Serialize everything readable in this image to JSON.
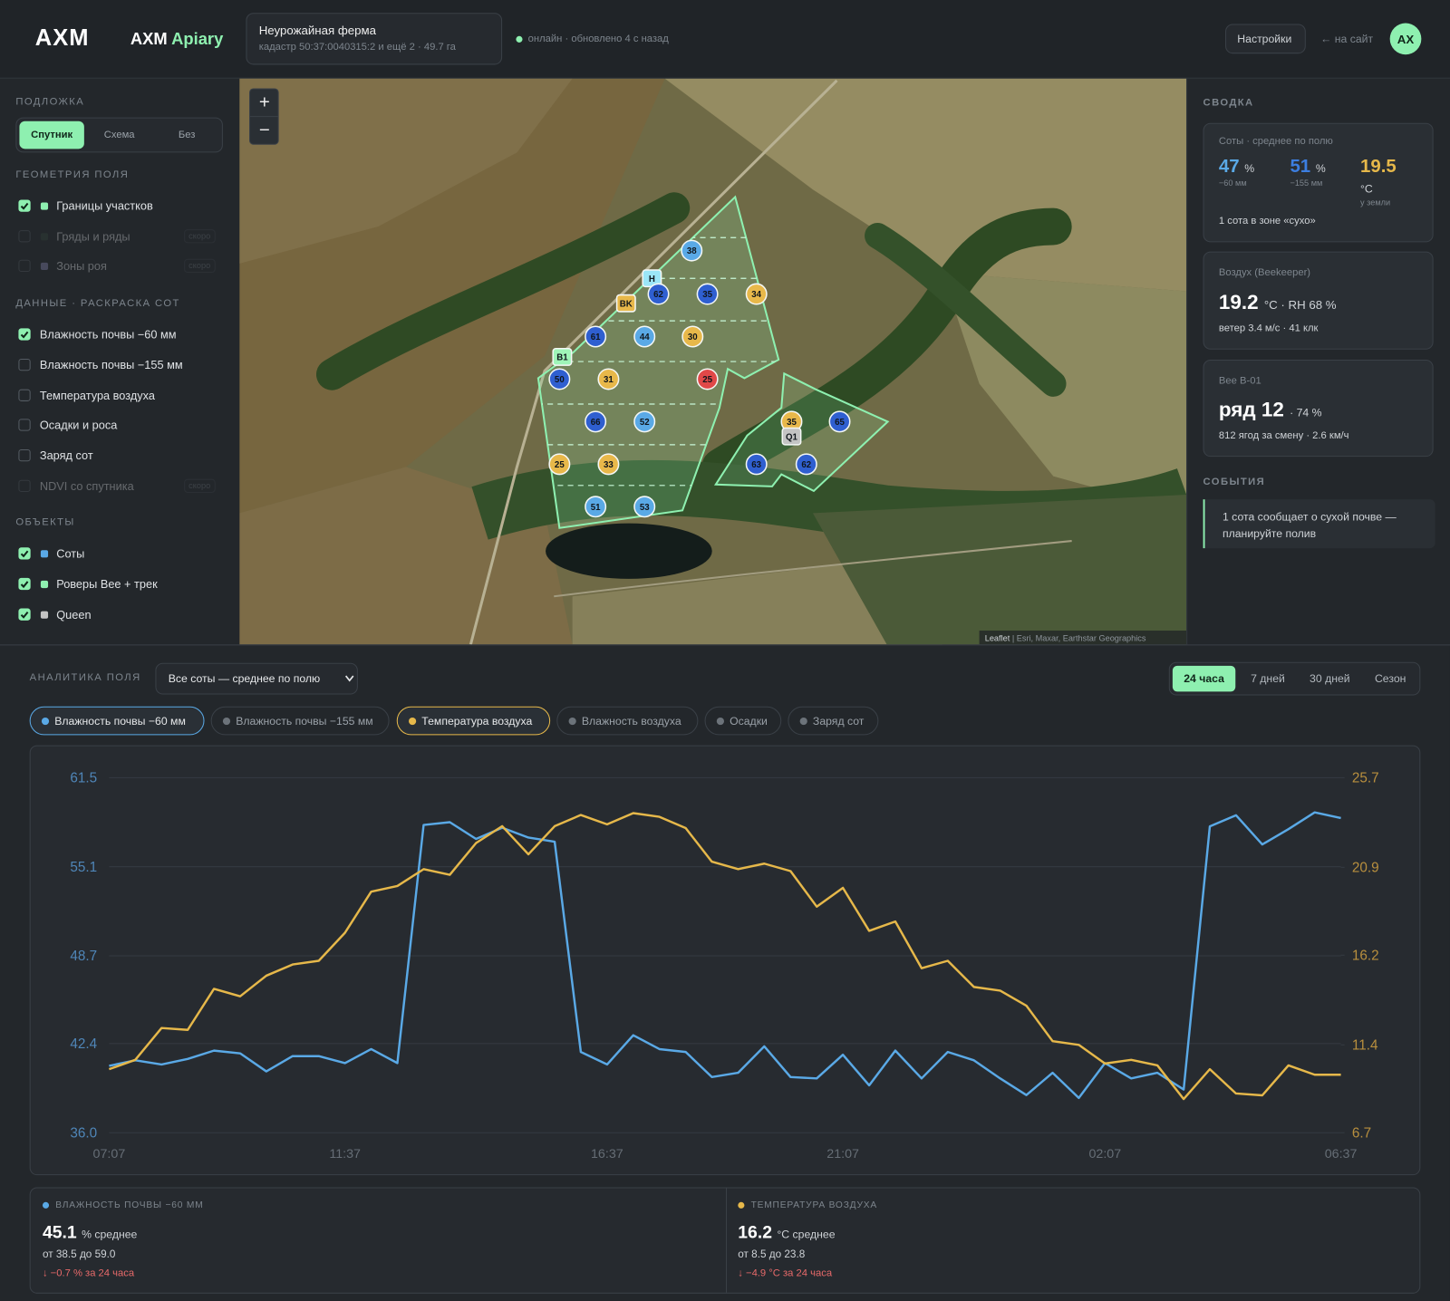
{
  "header": {
    "logo": "AXM",
    "app_name": "AXM",
    "app_accent": "Apiary",
    "farm_name": "Неурожайная ферма",
    "farm_details": "кадастр 50:37:0040315:2 и ещё 2 · 49.7 га",
    "status": "онлайн · обновлено 4 с назад",
    "settings": "Настройки",
    "back": "← на сайт",
    "avatar": "AX"
  },
  "basemap": {
    "title": "ПОДЛОЖКА",
    "options": [
      "Спутник",
      "Схема",
      "Без"
    ],
    "active": 0
  },
  "layers": [
    {
      "title": "ГЕОМЕТРИЯ ПОЛЯ",
      "items": [
        {
          "label": "Границы участков",
          "checked": true,
          "color": "#8ef0b0"
        },
        {
          "label": "Гряды и ряды",
          "checked": false,
          "disabled": true,
          "color": "#33453a",
          "badge": "скоро"
        },
        {
          "label": "Зоны роя",
          "checked": false,
          "disabled": true,
          "color": "#8a8ab8",
          "badge": "скоро"
        }
      ]
    },
    {
      "title": "ДАННЫЕ · РАСКРАСКА СОТ",
      "items": [
        {
          "label": "Влажность почвы −60 мм",
          "checked": true
        },
        {
          "label": "Влажность почвы −155 мм",
          "checked": false
        },
        {
          "label": "Температура воздуха",
          "checked": false
        },
        {
          "label": "Осадки и роса",
          "checked": false
        },
        {
          "label": "Заряд сот",
          "checked": false
        },
        {
          "label": "NDVI со спутника",
          "checked": false,
          "disabled": true,
          "badge": "скоро"
        }
      ]
    },
    {
      "title": "ОБЪЕКТЫ",
      "items": [
        {
          "label": "Соты",
          "checked": true,
          "color": "#5aa9e6"
        },
        {
          "label": "Роверы Bee + трек",
          "checked": true,
          "color": "#8ef0b0"
        },
        {
          "label": "Queen",
          "checked": true,
          "color": "#c4c4c4"
        }
      ]
    }
  ],
  "map": {
    "zoom_in": "+",
    "zoom_out": "−",
    "attribution_brand": "Leaflet",
    "attribution": "| Esri, Maxar, Earthstar Geographics",
    "markers": [
      {
        "label": "38",
        "color": "#5aa9e6"
      },
      {
        "label": "H",
        "color": "#9be6f7",
        "shape": "square"
      },
      {
        "label": "62",
        "color": "#2f5fd0"
      },
      {
        "label": "35",
        "color": "#2f5fd0"
      },
      {
        "label": "34",
        "color": "#e8b84a"
      },
      {
        "label": "BK",
        "color": "#e8b84a",
        "shape": "square"
      },
      {
        "label": "61",
        "color": "#2f5fd0"
      },
      {
        "label": "44",
        "color": "#5aa9e6"
      },
      {
        "label": "30",
        "color": "#e8b84a"
      },
      {
        "label": "B1",
        "color": "#9ff5b8",
        "shape": "square"
      },
      {
        "label": "50",
        "color": "#2f5fd0"
      },
      {
        "label": "31",
        "color": "#e8b84a"
      },
      {
        "label": "25",
        "color": "#e04848"
      },
      {
        "label": "66",
        "color": "#2f5fd0"
      },
      {
        "label": "52",
        "color": "#5aa9e6"
      },
      {
        "label": "35",
        "color": "#e8b84a"
      },
      {
        "label": "65",
        "color": "#2f5fd0"
      },
      {
        "label": "Q1",
        "color": "#c4c4c4",
        "shape": "square"
      },
      {
        "label": "25",
        "color": "#e8b84a"
      },
      {
        "label": "33",
        "color": "#e8b84a"
      },
      {
        "label": "63",
        "color": "#2f5fd0"
      },
      {
        "label": "62",
        "color": "#2f5fd0"
      },
      {
        "label": "51",
        "color": "#5aa9e6"
      },
      {
        "label": "53",
        "color": "#5aa9e6"
      }
    ]
  },
  "summary": {
    "title": "СВОДКА",
    "soil": {
      "title": "Соты · среднее по полю",
      "v1": 47,
      "u1": "%",
      "d1": "−60 мм",
      "v2": 51,
      "u2": "%",
      "d2": "−155 мм",
      "v3": 19.5,
      "u3": "°C",
      "d3": "у земли",
      "note": "1 сота в зоне «сухо»"
    },
    "air": {
      "title": "Воздух (Beekeeper)",
      "temp": 19.2,
      "detail": "°C · RH 68 %",
      "note": "ветер 3.4 м/с · 41 клк"
    },
    "bee": {
      "title": "Bee B-01",
      "row_label": "ряд",
      "row": 12,
      "detail": "· 74 %",
      "note": "812 ягод за смену · 2.6 км/ч"
    }
  },
  "events": {
    "title": "СОБЫТИЯ",
    "items": [
      "1 сота сообщает о сухой почве — планируйте полив"
    ]
  },
  "analytics": {
    "title": "АНАЛИТИКА ПОЛЯ",
    "select": "Все соты — среднее по полю",
    "ranges": [
      "24 часа",
      "7 дней",
      "30 дней",
      "Сезон"
    ],
    "active_range": 0,
    "metrics": [
      "Влажность почвы −155 мм",
      "Влажность воздуха",
      "Осадки",
      "Заряд сот"
    ]
  },
  "chart_data": {
    "type": "line",
    "categories": [
      "07:07",
      null,
      null,
      null,
      null,
      null,
      null,
      null,
      null,
      "11:37",
      null,
      null,
      null,
      null,
      null,
      null,
      null,
      null,
      null,
      "16:37",
      null,
      null,
      null,
      null,
      null,
      null,
      null,
      null,
      "21:07",
      null,
      null,
      null,
      null,
      null,
      null,
      null,
      null,
      null,
      "02:07",
      null,
      null,
      null,
      null,
      null,
      null,
      null,
      null,
      "06:37"
    ],
    "series": [
      {
        "name": "Влажность почвы −60 мм",
        "color": "#5aa9e6",
        "values": [
          40.8,
          41.2,
          40.9,
          41.3,
          41.9,
          41.7,
          40.4,
          41.5,
          41.5,
          41.0,
          42.0,
          41.0,
          58.1,
          58.3,
          57.1,
          57.9,
          57.2,
          56.9,
          41.8,
          40.9,
          43.0,
          42.0,
          41.8,
          40.0,
          40.3,
          42.2,
          40.0,
          39.9,
          41.6,
          39.4,
          41.9,
          39.9,
          41.8,
          41.2,
          39.9,
          38.7,
          40.3,
          38.5,
          41.0,
          39.9,
          40.3,
          39.1,
          58.0,
          58.8,
          56.7,
          57.8,
          59.0,
          58.6
        ]
      },
      {
        "name": "Температура воздуха",
        "color": "#e6b84a",
        "axis": "y2",
        "values": [
          10.1,
          10.6,
          12.3,
          12.2,
          14.4,
          14.0,
          15.1,
          15.7,
          15.9,
          17.4,
          19.6,
          19.9,
          20.8,
          20.5,
          22.2,
          23.1,
          21.6,
          23.1,
          23.7,
          23.2,
          23.8,
          23.6,
          23.0,
          21.2,
          20.8,
          21.1,
          20.7,
          18.8,
          19.8,
          17.5,
          18.0,
          15.5,
          15.9,
          14.5,
          14.3,
          13.5,
          11.6,
          11.4,
          10.4,
          10.6,
          10.3,
          8.5,
          10.1,
          8.8,
          8.7,
          10.3,
          9.8,
          9.8
        ]
      }
    ],
    "ylim": [
      36,
      61.5
    ],
    "yticks": [
      {
        "value": 36,
        "label": "36.0"
      },
      42.4,
      48.7,
      55.1,
      61.5
    ],
    "y2lim": [
      6.7,
      25.7
    ],
    "y2ticks": [
      6.7,
      11.4,
      16.2,
      20.9,
      25.7
    ],
    "grid": true
  },
  "stats": [
    {
      "title": "ВЛАЖНОСТЬ ПОЧВЫ −60 ММ",
      "color": "#5aa9e6",
      "value": 45.1,
      "unit": "% среднее",
      "range": "от 38.5 до 59.0",
      "delta": "↓ −0.7 % за 24 часа"
    },
    {
      "title": "ТЕМПЕРАТУРА ВОЗДУХА",
      "color": "#e6b84a",
      "value": 16.2,
      "unit": "°C среднее",
      "range": "от 8.5 до 23.8",
      "delta": "↓ −4.9 °C за 24 часа"
    }
  ]
}
